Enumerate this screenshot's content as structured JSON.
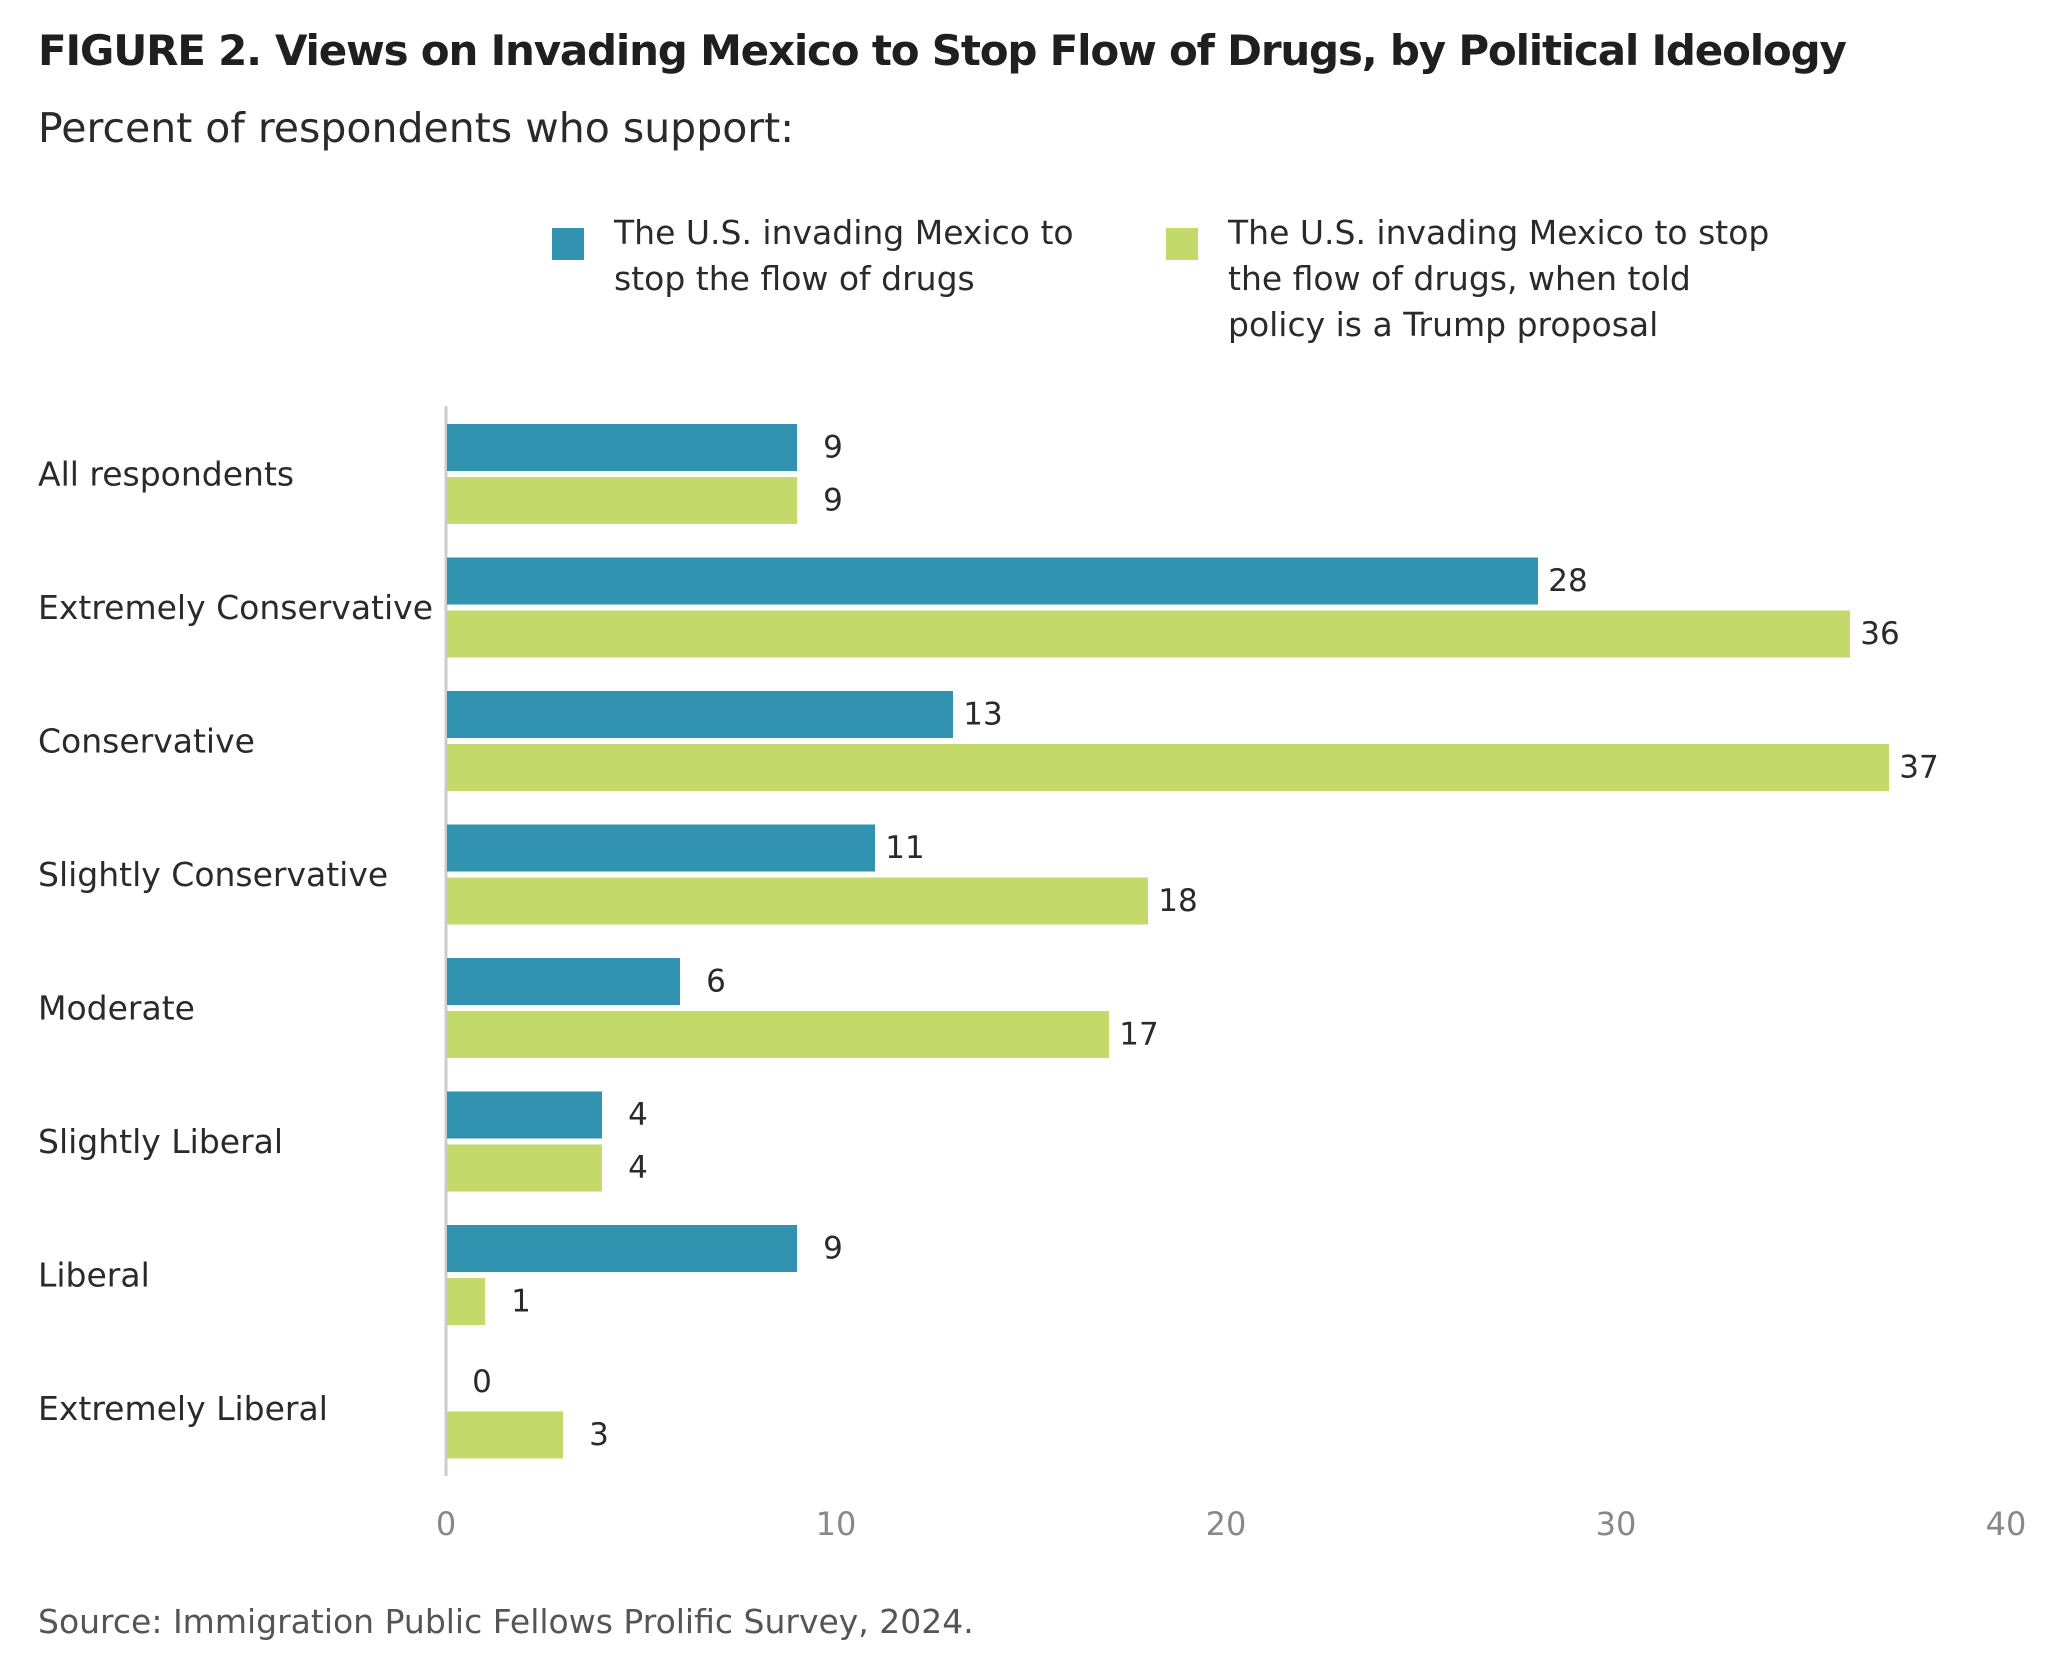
{
  "title_prefix": "FIGURE 2.",
  "title": "Views on Invading Mexico to Stop Flow of Drugs, by Political Ideology",
  "subtitle": "Percent of respondents who support:",
  "source": "Source: Immigration Public Fellows Prolific Survey, 2024.",
  "colors": {
    "series_1": "#3193b0",
    "series_2": "#c3da6b",
    "axis": "#cccccc",
    "tick_text": "#888888",
    "label_text": "#2a2a2a"
  },
  "legend": {
    "placement": "top-right",
    "items": [
      {
        "label": "The U.S. invading Mexico to stop the flow of drugs"
      },
      {
        "label": "The U.S. invading Mexico to stop the flow of drugs, when told policy is a Trump proposal"
      }
    ]
  },
  "chart_data": {
    "type": "bar",
    "orientation": "horizontal",
    "title": "Views on Invading Mexico to Stop Flow of Drugs, by Political Ideology",
    "subtitle": "Percent of respondents who support:",
    "categories": [
      "All respondents",
      "Extremely Conservative",
      "Conservative",
      "Slightly Conservative",
      "Moderate",
      "Slightly Liberal",
      "Liberal",
      "Extremely Liberal"
    ],
    "series": [
      {
        "name": "The U.S. invading Mexico to stop the flow of drugs",
        "values": [
          9,
          28,
          13,
          11,
          6,
          4,
          9,
          0
        ]
      },
      {
        "name": "The U.S. invading Mexico to stop the flow of drugs, when told policy is a Trump proposal",
        "values": [
          9,
          36,
          37,
          18,
          17,
          4,
          1,
          3
        ]
      }
    ],
    "xlim": [
      0,
      40
    ],
    "xticks": [
      0,
      10,
      20,
      30,
      40
    ],
    "grid": false,
    "legend_position": "top-right",
    "xlabel": "",
    "ylabel": ""
  }
}
